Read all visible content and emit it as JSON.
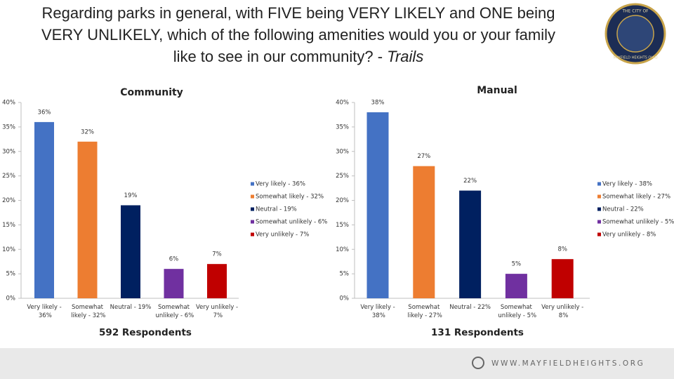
{
  "header": {
    "title_lines": [
      "Regarding parks in general, with FIVE being VERY LIKELY and ONE being",
      "VERY UNLIKELY, which of the following amenities would you or your family",
      "like to see in our community? - "
    ],
    "title_emphasis": "Trails"
  },
  "logo": {
    "top_text": "THE CITY OF",
    "bottom_text": "MAYFIELD HEIGHTS OHIO"
  },
  "footer": {
    "url": "WWW.MAYFIELDHEIGHTS.ORG"
  },
  "chart_data": [
    {
      "type": "bar",
      "title": "Community",
      "subtitle": "592 Respondents",
      "categories": [
        "Very likely - 36%",
        "Somewhat likely - 32%",
        "Neutral - 19%",
        "Somewhat unlikely - 6%",
        "Very unlikely - 7%"
      ],
      "values": [
        36,
        32,
        19,
        6,
        7
      ],
      "value_labels": [
        "36%",
        "32%",
        "19%",
        "6%",
        "7%"
      ],
      "colors": [
        "#4472c4",
        "#ed7d31",
        "#002060",
        "#7030a0",
        "#c00000"
      ],
      "ylim": [
        0,
        40
      ],
      "yticks": [
        {
          "value": 0,
          "label": "0%"
        },
        {
          "value": 5,
          "label": "5%"
        },
        {
          "value": 10,
          "label": "10%"
        },
        {
          "value": 15,
          "label": "15%"
        },
        {
          "value": 20,
          "label": "20%"
        },
        {
          "value": 25,
          "label": "25%"
        },
        {
          "value": 30,
          "label": "30%"
        },
        {
          "value": 35,
          "label": "35%"
        },
        {
          "value": 40,
          "label": "40%"
        }
      ],
      "grid": false,
      "legend": "right"
    },
    {
      "type": "bar",
      "title": "Manual",
      "subtitle": "131 Respondents",
      "categories": [
        "Very likely - 38%",
        "Somewhat likely - 27%",
        "Neutral - 22%",
        "Somewhat unlikely - 5%",
        "Very unlikely - 8%"
      ],
      "values": [
        38,
        27,
        22,
        5,
        8
      ],
      "value_labels": [
        "38%",
        "27%",
        "22%",
        "5%",
        "8%"
      ],
      "colors": [
        "#4472c4",
        "#ed7d31",
        "#002060",
        "#7030a0",
        "#c00000"
      ],
      "ylim": [
        0,
        40
      ],
      "yticks": [
        {
          "value": 0,
          "label": "0%"
        },
        {
          "value": 5,
          "label": "5%"
        },
        {
          "value": 10,
          "label": "10%"
        },
        {
          "value": 15,
          "label": "15%"
        },
        {
          "value": 20,
          "label": "20%"
        },
        {
          "value": 25,
          "label": "25%"
        },
        {
          "value": 30,
          "label": "30%"
        },
        {
          "value": 35,
          "label": "35%"
        },
        {
          "value": 40,
          "label": "40%"
        }
      ],
      "grid": false,
      "legend": "right"
    }
  ]
}
